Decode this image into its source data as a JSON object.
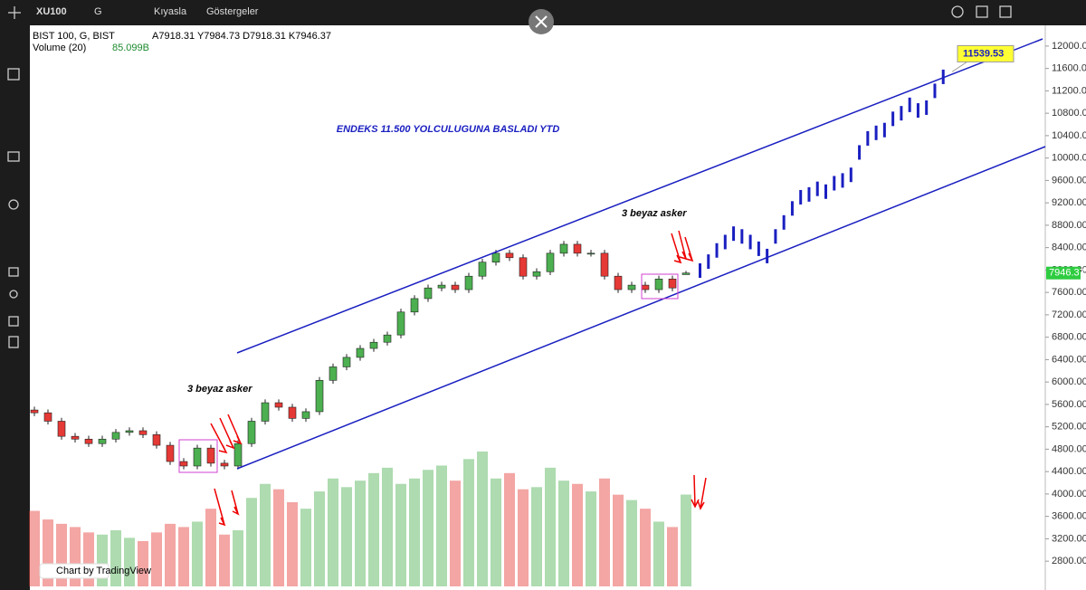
{
  "toolbar": {
    "symbol": "XU100",
    "interval": "G",
    "compare": "Kıyasla",
    "indicators": "Göstergeler"
  },
  "chart_data": {
    "type": "candlestick",
    "title": "BIST 100, G, BIST",
    "ohlc_label": "A7918.31 Y7984.73 D7918.31 K7946.37",
    "volume_label": "Volume (20)",
    "volume_value": "85.099B",
    "annotations": [
      "ENDEKS 11.500 YOLCULUGUNA BASLADI YTD",
      "3 beyaz asker",
      "3 beyaz asker"
    ],
    "open": [
      5500,
      5450,
      5300,
      5030,
      4980,
      4900,
      4980,
      5100,
      5130,
      5060,
      4870,
      4580,
      4500,
      4820,
      4550,
      4500,
      4900,
      5300,
      5630,
      5550,
      5350,
      5470,
      6030,
      6270,
      6440,
      6600,
      6710,
      6840,
      7250,
      7490,
      7680,
      7730,
      7650,
      7890,
      8140,
      8300,
      8220,
      7890,
      7970,
      8300,
      8460,
      8300,
      8300,
      7890,
      7650,
      7730,
      7650,
      7840,
      7918.31
    ],
    "high": [
      5560,
      5510,
      5360,
      5090,
      5040,
      5040,
      5160,
      5190,
      5190,
      5120,
      4930,
      4640,
      4880,
      4880,
      4610,
      4960,
      5360,
      5690,
      5690,
      5610,
      5530,
      6090,
      6330,
      6500,
      6660,
      6770,
      6900,
      7310,
      7550,
      7740,
      7790,
      7790,
      7950,
      8200,
      8360,
      8360,
      8280,
      8030,
      8360,
      8520,
      8520,
      8360,
      8360,
      7950,
      7790,
      7790,
      7900,
      7900,
      7984.73
    ],
    "low": [
      5390,
      5240,
      4970,
      4920,
      4840,
      4840,
      4920,
      5040,
      5000,
      4810,
      4520,
      4440,
      4440,
      4490,
      4440,
      4440,
      4840,
      5240,
      5490,
      5290,
      5290,
      5410,
      5970,
      6210,
      6380,
      6540,
      6650,
      6780,
      7190,
      7430,
      7620,
      7590,
      7590,
      7830,
      8080,
      8160,
      7830,
      7830,
      7910,
      8240,
      8240,
      8240,
      7830,
      7590,
      7590,
      7590,
      7590,
      7620,
      7918.31
    ],
    "close": [
      5450,
      5300,
      5030,
      4980,
      4900,
      4980,
      5100,
      5130,
      5060,
      4870,
      4580,
      4500,
      4820,
      4550,
      4500,
      4900,
      5300,
      5630,
      5550,
      5350,
      5470,
      6030,
      6270,
      6440,
      6600,
      6710,
      6840,
      7250,
      7490,
      7680,
      7730,
      7650,
      7890,
      8140,
      8300,
      8220,
      7890,
      7970,
      8300,
      8460,
      8300,
      8300,
      7890,
      7650,
      7730,
      7650,
      7840,
      7680,
      7946.37
    ],
    "volume": [
      70,
      62,
      58,
      55,
      50,
      48,
      52,
      45,
      42,
      50,
      58,
      55,
      60,
      72,
      48,
      52,
      82,
      95,
      90,
      78,
      72,
      88,
      100,
      92,
      98,
      105,
      110,
      95,
      100,
      108,
      112,
      98,
      118,
      125,
      100,
      105,
      90,
      92,
      110,
      98,
      95,
      88,
      100,
      85,
      80,
      72,
      60,
      55,
      85.099
    ],
    "volume_lim": [
      0,
      520
    ],
    "projection": [
      7990,
      8150,
      8350,
      8500,
      8650,
      8600,
      8500,
      8380,
      8250,
      8600,
      8850,
      9100,
      9300,
      9350,
      9450,
      9400,
      9550,
      9600,
      9700,
      10100,
      10350,
      10450,
      10500,
      10700,
      10800,
      10950,
      10850,
      10900,
      11200,
      11450
    ],
    "up_color": "#4caf50",
    "down_color": "#e53935",
    "projection_color": "#1a1fc0",
    "ylim": [
      2350,
      12370
    ],
    "yticks": [
      {
        "value": 2800,
        "label": "2800.00"
      },
      {
        "value": 3200,
        "label": "3200.00"
      },
      {
        "value": 3600,
        "label": "3600.00"
      },
      {
        "value": 4000,
        "label": "4000.00"
      },
      {
        "value": 4400,
        "label": "4400.00"
      },
      {
        "value": 4800,
        "label": "4800.00"
      },
      {
        "value": 5200,
        "label": "5200.00"
      },
      {
        "value": 5600,
        "label": "5600.00"
      },
      {
        "value": 6000,
        "label": "6000.00"
      },
      {
        "value": 6400,
        "label": "6400.00"
      },
      {
        "value": 6800,
        "label": "6800.00"
      },
      {
        "value": 7200,
        "label": "7200.00"
      },
      {
        "value": 7600,
        "label": "7600.00"
      },
      {
        "value": 8000,
        "label": "8000.00"
      },
      {
        "value": 8400,
        "label": "8400.00"
      },
      {
        "value": 8800,
        "label": "8800.00"
      },
      {
        "value": 9200,
        "label": "9200.00"
      },
      {
        "value": 9600,
        "label": "9600.00"
      },
      {
        "value": 10000,
        "label": "10000.00"
      },
      {
        "value": 10400,
        "label": "10400.00"
      },
      {
        "value": 10800,
        "label": "10800.00"
      },
      {
        "value": 11200,
        "label": "11200.00"
      },
      {
        "value": 11600,
        "label": "11600.00"
      },
      {
        "value": 12000,
        "label": "12000.00"
      }
    ],
    "last_price": {
      "value": 7946.37,
      "label": "7946.37"
    },
    "target": {
      "value": 11539.53,
      "label": "11539.53"
    },
    "footer": "Chart by TradingView"
  }
}
